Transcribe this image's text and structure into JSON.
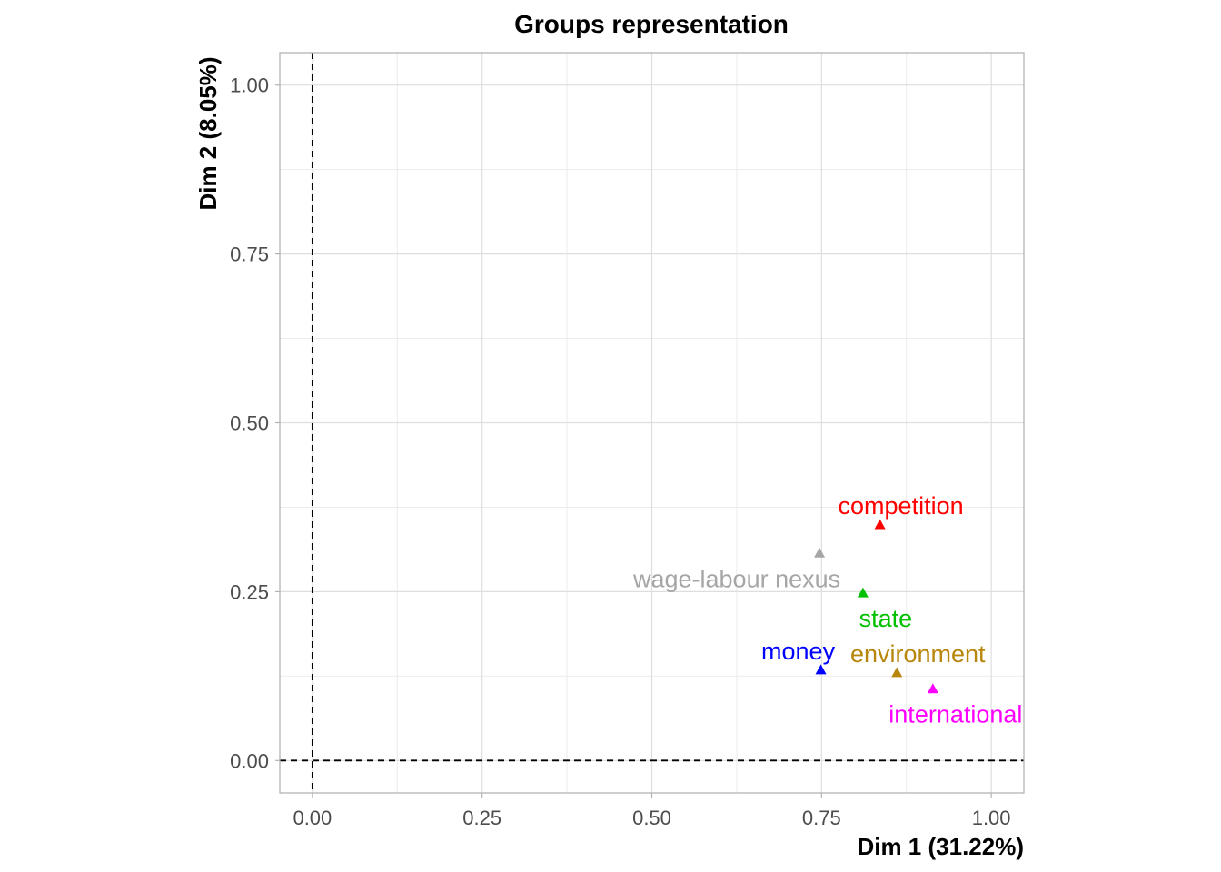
{
  "chart_data": {
    "type": "scatter",
    "title": "Groups representation",
    "xlabel": "Dim 1 (31.22%)",
    "ylabel": "Dim 2 (8.05%)",
    "xlim": [
      -0.048,
      1.048
    ],
    "ylim": [
      -0.048,
      1.048
    ],
    "x_ticks": [
      0,
      0.25,
      0.5,
      0.75,
      1
    ],
    "x_tick_labels": [
      "0.00",
      "0.25",
      "0.50",
      "0.75",
      "1.00"
    ],
    "y_ticks": [
      0,
      0.25,
      0.5,
      0.75,
      1
    ],
    "y_tick_labels": [
      "0.00",
      "0.25",
      "0.50",
      "0.75",
      "1.00"
    ],
    "grid": true,
    "legend": "none",
    "reference_lines": {
      "x": 0,
      "y": 0,
      "style": "dashed"
    },
    "marker": "triangle",
    "points": [
      {
        "label": "competition",
        "x": 0.836,
        "y": 0.35,
        "color": "#ff0000",
        "label_pos": "above"
      },
      {
        "label": "wage-labour nexus",
        "x": 0.747,
        "y": 0.308,
        "color": "#a6a6a6",
        "label_pos": "below-left"
      },
      {
        "label": "state",
        "x": 0.811,
        "y": 0.249,
        "color": "#00c000",
        "label_pos": "below"
      },
      {
        "label": "money",
        "x": 0.749,
        "y": 0.135,
        "color": "#0000ff",
        "label_pos": "above-left"
      },
      {
        "label": "environment",
        "x": 0.861,
        "y": 0.131,
        "color": "#b8860b",
        "label_pos": "above"
      },
      {
        "label": "international",
        "x": 0.914,
        "y": 0.107,
        "color": "#ff00ff",
        "label_pos": "below"
      }
    ]
  }
}
